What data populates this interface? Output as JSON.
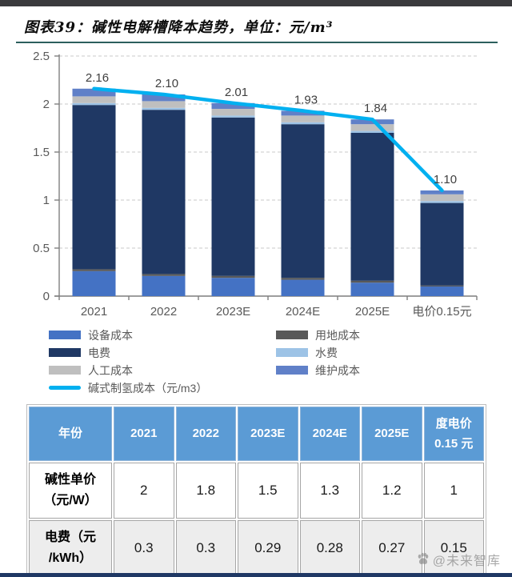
{
  "page": {
    "title": "图表39：碱性电解槽降本趋势，单位：元/m³",
    "watermark": "@未来智库"
  },
  "colors": {
    "accent_line": "#00b0f0",
    "navy": "#1f3864",
    "royal_blue": "#4472c4",
    "periwinkle": "#6080c8",
    "light_blue": "#9dc3e6",
    "silver": "#bfbfbf",
    "dark_gray": "#595959",
    "axis_gray": "#7f7f7f",
    "grid_gray": "#c9c9c9",
    "label_gray": "#404040",
    "table_header_bg": "#5b9bd5",
    "table_alt_row_bg": "#ededed",
    "bottom_bar": "#1f3864"
  },
  "chart_data": {
    "type": "bar",
    "subtype": "stacked-bar-with-line",
    "categories": [
      "2021",
      "2022",
      "2023E",
      "2024E",
      "2025E",
      "电价0.15元"
    ],
    "series": [
      {
        "name": "设备成本",
        "color": "#4472c4",
        "values": [
          0.26,
          0.21,
          0.19,
          0.17,
          0.14,
          0.1
        ]
      },
      {
        "name": "用地成本",
        "color": "#595959",
        "values": [
          0.02,
          0.02,
          0.02,
          0.02,
          0.02,
          0.01
        ]
      },
      {
        "name": "电费",
        "color": "#1f3864",
        "values": [
          1.71,
          1.71,
          1.65,
          1.6,
          1.54,
          0.86
        ]
      },
      {
        "name": "水费",
        "color": "#9dc3e6",
        "values": [
          0.02,
          0.02,
          0.02,
          0.02,
          0.02,
          0.02
        ]
      },
      {
        "name": "人工成本",
        "color": "#bfbfbf",
        "values": [
          0.07,
          0.07,
          0.07,
          0.07,
          0.07,
          0.07
        ]
      },
      {
        "name": "维护成本",
        "color": "#6080c8",
        "values": [
          0.08,
          0.07,
          0.06,
          0.05,
          0.05,
          0.04
        ]
      }
    ],
    "line_series": {
      "name": "碱式制氢成本（元/m3）",
      "color": "#00b0f0",
      "values": [
        2.16,
        2.1,
        2.01,
        1.93,
        1.84,
        1.1
      ]
    },
    "data_labels": [
      "2.16",
      "2.10",
      "2.01",
      "1.93",
      "1.84",
      "1.10"
    ],
    "ylim": [
      0,
      2.5
    ],
    "yticks": [
      0,
      0.5,
      1,
      1.5,
      2,
      2.5
    ],
    "ytick_labels": [
      "0",
      "0.5",
      "1",
      "1.5",
      "2",
      "2.5"
    ],
    "grid": true,
    "legend_position": "bottom"
  },
  "legend": {
    "items": [
      {
        "label": "设备成本",
        "color": "#4472c4",
        "type": "box"
      },
      {
        "label": "用地成本",
        "color": "#595959",
        "type": "box"
      },
      {
        "label": "电费",
        "color": "#1f3864",
        "type": "box"
      },
      {
        "label": "水费",
        "color": "#9dc3e6",
        "type": "box"
      },
      {
        "label": "人工成本",
        "color": "#bfbfbf",
        "type": "box"
      },
      {
        "label": "维护成本",
        "color": "#6080c8",
        "type": "box"
      },
      {
        "label": "碱式制氢成本（元/m3）",
        "color": "#00b0f0",
        "type": "line"
      }
    ]
  },
  "table": {
    "header": [
      "年份",
      "2021",
      "2022",
      "2023E",
      "2024E",
      "2025E",
      "度电价\n0.15 元"
    ],
    "rows": [
      {
        "label": "碱性单价\n（元/W）",
        "values": [
          "2",
          "1.8",
          "1.5",
          "1.3",
          "1.2",
          "1"
        ]
      },
      {
        "label": "电费（元\n/kWh）",
        "values": [
          "0.3",
          "0.3",
          "0.29",
          "0.28",
          "0.27",
          "0.15"
        ]
      }
    ]
  }
}
